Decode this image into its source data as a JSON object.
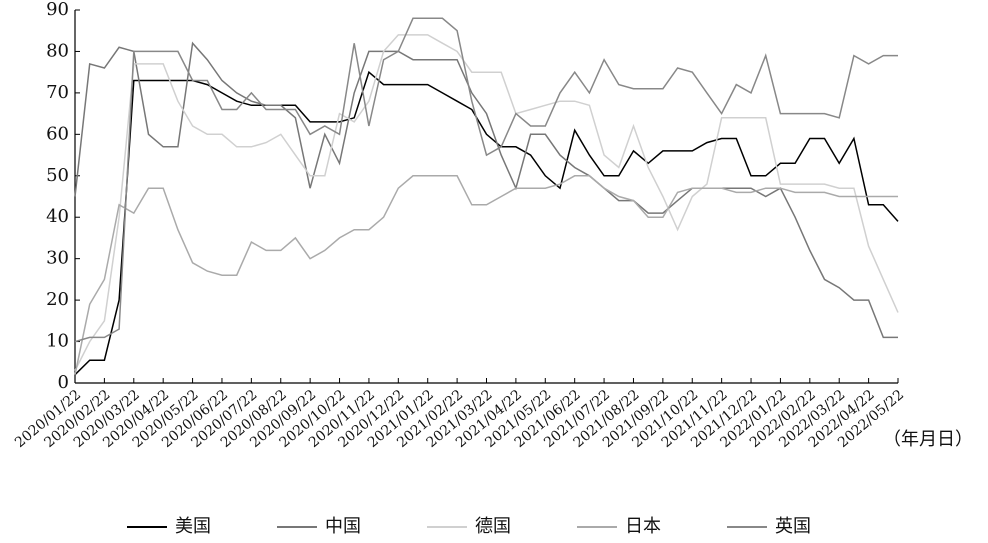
{
  "chart_data": {
    "type": "line",
    "x_label": "（年月日）",
    "categories": [
      "2020/01/22",
      null,
      "2020/02/22",
      null,
      "2020/03/22",
      null,
      "2020/04/22",
      null,
      "2020/05/22",
      null,
      "2020/06/22",
      null,
      "2020/07/22",
      null,
      "2020/08/22",
      null,
      "2020/09/22",
      null,
      "2020/10/22",
      null,
      "2020/11/22",
      null,
      "2020/12/22",
      null,
      "2021/01/22",
      null,
      "2021/02/22",
      null,
      "2021/03/22",
      null,
      "2021/04/22",
      null,
      "2021/05/22",
      null,
      "2021/06/22",
      null,
      "2021/07/22",
      null,
      "2021/08/22",
      null,
      "2021/09/22",
      null,
      "2021/10/22",
      null,
      "2021/11/22",
      null,
      "2021/12/22",
      null,
      "2022/01/22",
      null,
      "2022/02/22",
      null,
      "2022/03/22",
      null,
      "2022/04/22",
      null,
      "2022/05/22"
    ],
    "series": [
      {
        "name": "美国",
        "color": "#000000",
        "values": [
          2,
          5.5,
          5.5,
          20,
          73,
          73,
          73,
          73,
          73,
          72,
          70,
          68,
          67,
          67,
          67,
          67,
          63,
          63,
          63,
          64,
          75,
          72,
          72,
          72,
          72,
          70,
          68,
          66,
          60,
          57,
          57,
          55,
          50,
          47,
          61,
          55,
          50,
          50,
          56,
          53,
          56,
          56,
          56,
          58,
          59,
          59,
          50,
          50,
          53,
          53,
          59,
          59,
          53,
          59,
          43,
          43,
          39
        ]
      },
      {
        "name": "中国",
        "color": "#777777",
        "values": [
          45,
          77,
          76,
          81,
          80,
          60,
          57,
          57,
          82,
          78,
          73,
          70,
          68,
          67,
          67,
          64,
          47,
          60,
          53,
          70,
          80,
          80,
          80,
          78,
          78,
          78,
          78,
          70,
          65,
          55,
          47,
          60,
          60,
          55,
          52,
          50,
          47,
          44,
          44,
          41,
          41,
          44,
          47,
          47,
          47,
          47,
          47,
          45,
          47,
          40,
          32,
          25,
          23,
          20,
          20,
          11,
          11
        ]
      },
      {
        "name": "德国",
        "color": "#d0d0d0",
        "values": [
          3,
          10,
          15,
          40,
          77,
          77,
          77,
          68,
          62,
          60,
          60,
          57,
          57,
          58,
          60,
          55,
          50,
          50,
          65,
          63,
          68,
          80,
          84,
          84,
          84,
          82,
          80,
          75,
          75,
          75,
          65,
          66,
          67,
          68,
          68,
          67,
          55,
          52,
          62,
          52,
          45,
          37,
          45,
          48,
          64,
          64,
          64,
          64,
          48,
          48,
          48,
          48,
          47,
          47,
          33,
          25,
          17
        ]
      },
      {
        "name": "日本",
        "color": "#aaaaaa",
        "values": [
          2,
          19,
          25,
          43,
          41,
          47,
          47,
          37,
          29,
          27,
          26,
          26,
          34,
          32,
          32,
          35,
          30,
          32,
          35,
          37,
          37,
          40,
          47,
          50,
          50,
          50,
          50,
          43,
          43,
          45,
          47,
          47,
          47,
          48,
          50,
          50,
          47,
          45,
          44,
          40,
          40,
          46,
          47,
          47,
          47,
          46,
          46,
          47,
          47,
          46,
          46,
          46,
          45,
          45,
          45,
          45,
          45
        ]
      },
      {
        "name": "英国",
        "color": "#888888",
        "values": [
          10,
          11,
          11,
          13,
          80,
          80,
          80,
          80,
          73,
          73,
          66,
          66,
          70,
          66,
          66,
          66,
          60,
          62,
          60,
          82,
          62,
          78,
          80,
          88,
          88,
          88,
          85,
          68,
          55,
          57,
          65,
          62,
          62,
          70,
          75,
          70,
          78,
          72,
          71,
          71,
          71,
          76,
          75,
          70,
          65,
          72,
          70,
          79,
          65,
          65,
          65,
          65,
          64,
          79,
          77,
          79,
          79
        ]
      }
    ],
    "ylim": [
      0,
      90
    ],
    "yticks": [
      0,
      10,
      20,
      30,
      40,
      50,
      60,
      70,
      80,
      90
    ],
    "grid": false
  }
}
